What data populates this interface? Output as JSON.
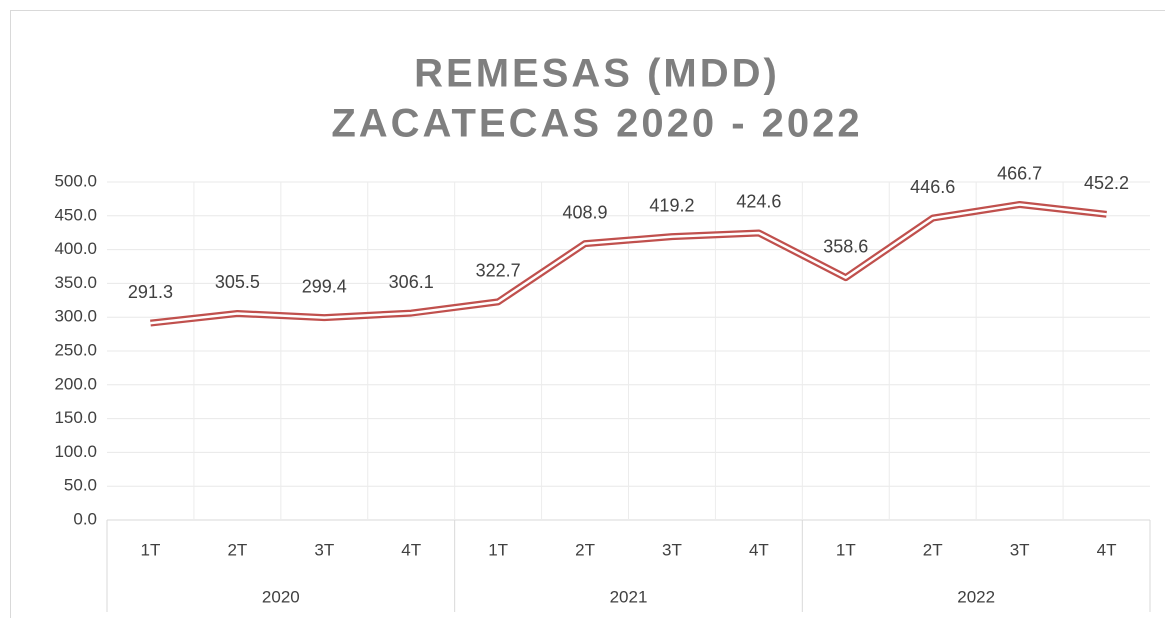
{
  "chart_data": {
    "type": "line",
    "title_lines": [
      "REMESAS (MDD)",
      "ZACATECAS 2020 - 2022"
    ],
    "categories": [
      "1T",
      "2T",
      "3T",
      "4T",
      "1T",
      "2T",
      "3T",
      "4T",
      "1T",
      "2T",
      "3T",
      "4T"
    ],
    "category_groups": [
      {
        "name": "2020",
        "span": 4
      },
      {
        "name": "2021",
        "span": 4
      },
      {
        "name": "2022",
        "span": 4
      }
    ],
    "values": [
      291.3,
      305.5,
      299.4,
      306.1,
      322.7,
      408.9,
      419.2,
      424.6,
      358.6,
      446.6,
      466.7,
      452.2
    ],
    "color": "#c0504d",
    "ylim": [
      0,
      500
    ],
    "yticks": [
      {
        "value": 0,
        "label": "0.0"
      },
      {
        "value": 50,
        "label": "50.0"
      },
      {
        "value": 100,
        "label": "100.0"
      },
      {
        "value": 150,
        "label": "150.0"
      },
      {
        "value": 200,
        "label": "200.0"
      },
      {
        "value": 250,
        "label": "250.0"
      },
      {
        "value": 300,
        "label": "300.0"
      },
      {
        "value": 350,
        "label": "350.0"
      },
      {
        "value": 400,
        "label": "400.0"
      },
      {
        "value": 450,
        "label": "450.0"
      },
      {
        "value": 500,
        "label": "500.0"
      }
    ],
    "grid": true
  }
}
